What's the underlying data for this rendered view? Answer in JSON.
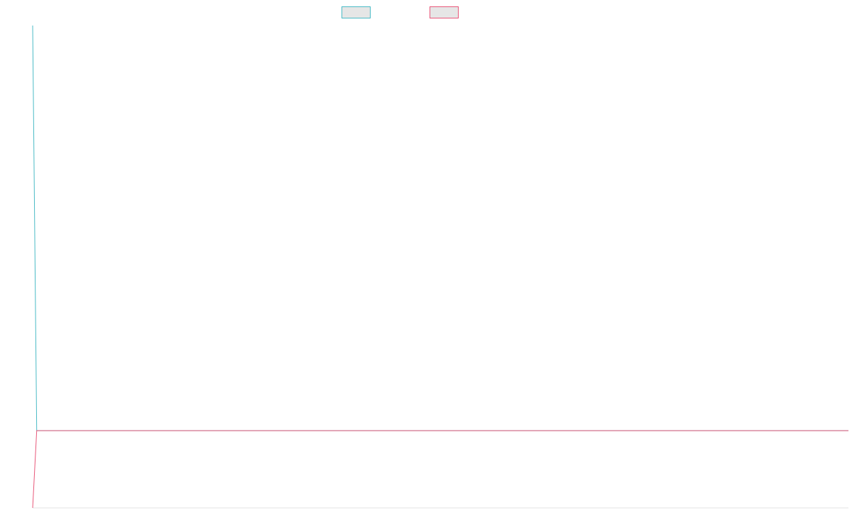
{
  "chart_data": {
    "type": "line",
    "x": [
      0,
      1,
      2
    ],
    "series": [
      {
        "color": "#4bbbc6",
        "values": [
          1000,
          0.5,
          0.5
        ]
      },
      {
        "color": "#e8587a",
        "values": [
          -190,
          0.5,
          0.5
        ]
      }
    ],
    "xlim": [
      0,
      200
    ],
    "ylim": [
      -190,
      1000
    ],
    "legend": "top-center",
    "grid": false,
    "title": "",
    "xlabel": "",
    "ylabel": ""
  }
}
